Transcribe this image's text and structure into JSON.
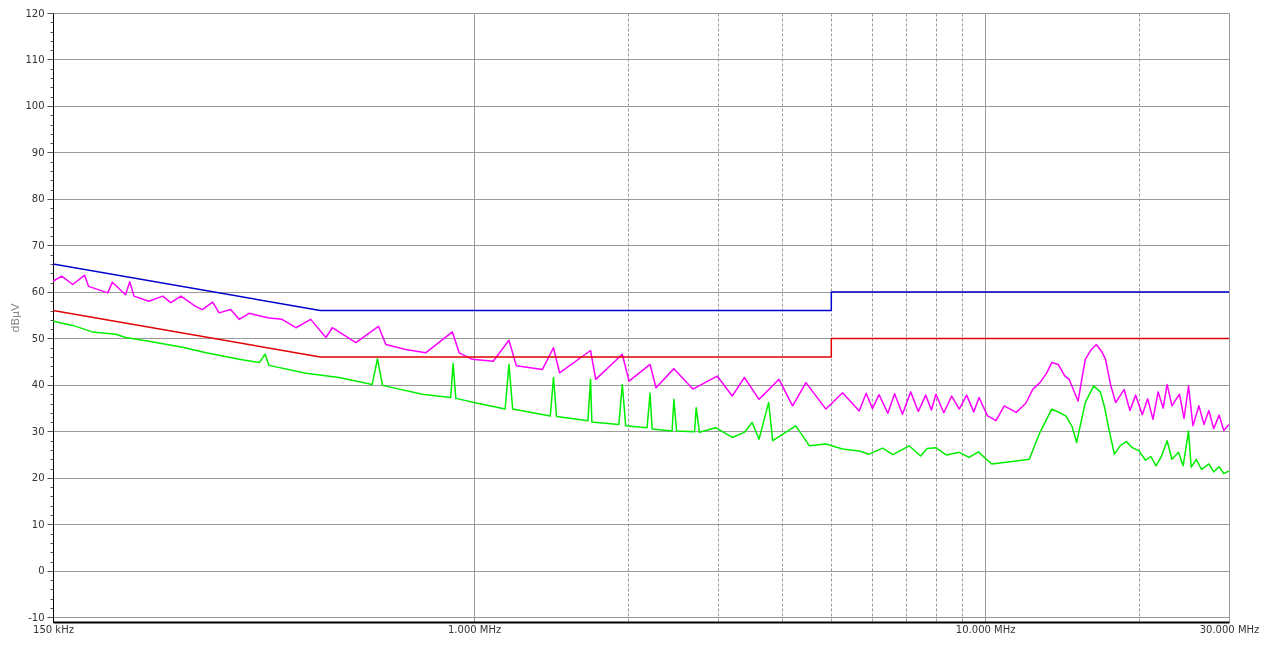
{
  "chart_data": {
    "type": "line",
    "ylabel": "dBµV",
    "log": "x",
    "grid": true,
    "line_style": "solid",
    "xlim": [
      150,
      30000
    ],
    "xticks": [
      {
        "value": 150,
        "label": "150 kHz"
      },
      {
        "value": 1000,
        "label": "1.000 MHz"
      },
      {
        "value": 2000,
        "label": null
      },
      {
        "value": 3000,
        "label": null
      },
      {
        "value": 4000,
        "label": null
      },
      {
        "value": 5000,
        "label": null
      },
      {
        "value": 6000,
        "label": null
      },
      {
        "value": 7000,
        "label": null
      },
      {
        "value": 8000,
        "label": null
      },
      {
        "value": 9000,
        "label": null
      },
      {
        "value": 10000,
        "label": "10.000 MHz"
      },
      {
        "value": 20000,
        "label": null
      },
      {
        "value": 30000,
        "label": "30.000 MHz"
      }
    ],
    "ylim": [
      -11,
      120
    ],
    "yticks": [
      -10,
      {
        "value": -8,
        "label": null
      },
      {
        "value": -6,
        "label": null
      },
      {
        "value": -4,
        "label": null
      },
      {
        "value": -2,
        "label": null
      },
      0,
      {
        "value": 2,
        "label": null
      },
      {
        "value": 4,
        "label": null
      },
      {
        "value": 6,
        "label": null
      },
      {
        "value": 8,
        "label": null
      },
      10,
      {
        "value": 12,
        "label": null
      },
      {
        "value": 14,
        "label": null
      },
      {
        "value": 16,
        "label": null
      },
      {
        "value": 18,
        "label": null
      },
      20,
      {
        "value": 22,
        "label": null
      },
      {
        "value": 24,
        "label": null
      },
      {
        "value": 26,
        "label": null
      },
      {
        "value": 28,
        "label": null
      },
      30,
      {
        "value": 32,
        "label": null
      },
      {
        "value": 34,
        "label": null
      },
      {
        "value": 36,
        "label": null
      },
      {
        "value": 38,
        "label": null
      },
      40,
      {
        "value": 42,
        "label": null
      },
      {
        "value": 44,
        "label": null
      },
      {
        "value": 46,
        "label": null
      },
      {
        "value": 48,
        "label": null
      },
      50,
      {
        "value": 52,
        "label": null
      },
      {
        "value": 54,
        "label": null
      },
      {
        "value": 56,
        "label": null
      },
      {
        "value": 58,
        "label": null
      },
      60,
      {
        "value": 62,
        "label": null
      },
      {
        "value": 64,
        "label": null
      },
      {
        "value": 66,
        "label": null
      },
      {
        "value": 68,
        "label": null
      },
      70,
      {
        "value": 72,
        "label": null
      },
      {
        "value": 74,
        "label": null
      },
      {
        "value": 76,
        "label": null
      },
      {
        "value": 78,
        "label": null
      },
      80,
      {
        "value": 82,
        "label": null
      },
      {
        "value": 84,
        "label": null
      },
      {
        "value": 86,
        "label": null
      },
      {
        "value": 88,
        "label": null
      },
      90,
      {
        "value": 92,
        "label": null
      },
      {
        "value": 94,
        "label": null
      },
      {
        "value": 96,
        "label": null
      },
      {
        "value": 98,
        "label": null
      },
      100,
      {
        "value": 102,
        "label": null
      },
      {
        "value": 104,
        "label": null
      },
      {
        "value": 106,
        "label": null
      },
      {
        "value": 108,
        "label": null
      },
      110,
      {
        "value": 112,
        "label": null
      },
      {
        "value": 114,
        "label": null
      },
      {
        "value": 116,
        "label": null
      },
      {
        "value": 118,
        "label": null
      },
      120
    ],
    "series": [
      {
        "color": "#ff00ff",
        "x": [
          150,
          156,
          164,
          173,
          176,
          192,
          196,
          208,
          212,
          216,
          231,
          246,
          255,
          267,
          285,
          294,
          308,
          317,
          334,
          347,
          363,
          397,
          421,
          448,
          479,
          513,
          528,
          587,
          650,
          672,
          735,
          804,
          907,
          935,
          992,
          1090,
          1170,
          1210,
          1360,
          1430,
          1470,
          1690,
          1730,
          1950,
          2010,
          2210,
          2270,
          2460,
          2680,
          2990,
          3200,
          3380,
          3610,
          3950,
          4200,
          4460,
          4880,
          5260,
          5670,
          5850,
          6020,
          6200,
          6450,
          6650,
          6890,
          7150,
          7400,
          7650,
          7850,
          8010,
          8300,
          8600,
          8900,
          9200,
          9500,
          9730,
          10100,
          10500,
          10900,
          11500,
          12000,
          12400,
          12800,
          13200,
          13500,
          13900,
          14300,
          14600,
          15200,
          15500,
          15700,
          16100,
          16500,
          16900,
          17200,
          17600,
          18000,
          18700,
          19200,
          19700,
          20300,
          20800,
          21300,
          21800,
          22300,
          22700,
          23200,
          24000,
          24500,
          25000,
          25500,
          26200,
          26800,
          27400,
          28000,
          28700,
          29300,
          30000
        ],
        "values": [
          62.3,
          63.4,
          61.6,
          63.6,
          61.2,
          59.8,
          62.1,
          59.4,
          62.2,
          59.1,
          58.0,
          59.1,
          57.7,
          59.1,
          56.9,
          56.2,
          57.8,
          55.5,
          56.2,
          54.1,
          55.4,
          54.4,
          54.1,
          52.3,
          54.1,
          50.2,
          52.3,
          49.1,
          52.6,
          48.7,
          47.6,
          46.9,
          51.4,
          46.9,
          45.5,
          45.1,
          49.6,
          44.1,
          43.3,
          48.0,
          42.6,
          47.4,
          41.2,
          46.6,
          40.8,
          44.4,
          39.4,
          43.5,
          39.1,
          41.9,
          37.6,
          41.6,
          36.9,
          41.2,
          35.5,
          40.5,
          34.8,
          38.3,
          34.4,
          38.2,
          34.9,
          37.9,
          33.9,
          38.1,
          33.7,
          38.5,
          34.3,
          37.8,
          34.6,
          38.0,
          34.0,
          37.6,
          34.8,
          37.8,
          34.2,
          37.3,
          33.4,
          32.3,
          35.5,
          34.1,
          36.0,
          39.1,
          40.5,
          42.6,
          44.8,
          44.4,
          42.0,
          41.2,
          36.5,
          42.0,
          45.5,
          47.5,
          48.7,
          47.2,
          45.5,
          40.0,
          36.2,
          39.0,
          34.5,
          37.8,
          33.6,
          37.0,
          32.6,
          38.5,
          35.0,
          40.1,
          35.5,
          38.0,
          32.8,
          39.8,
          31.2,
          35.5,
          31.5,
          34.5,
          30.6,
          33.5,
          30.2,
          31.5
        ]
      },
      {
        "color": "#00ee00",
        "x": [
          150,
          164,
          179,
          199,
          208,
          231,
          269,
          299,
          347,
          380,
          390,
          397,
          469,
          544,
          632,
          647,
          662,
          792,
          900,
          910,
          921,
          1010,
          1150,
          1170,
          1190,
          1410,
          1430,
          1450,
          1670,
          1690,
          1700,
          1920,
          1950,
          1980,
          2180,
          2210,
          2230,
          2440,
          2460,
          2490,
          2700,
          2720,
          2760,
          2970,
          3200,
          3380,
          3500,
          3610,
          3770,
          3840,
          4260,
          4530,
          4880,
          5260,
          5670,
          5930,
          6300,
          6600,
          7100,
          7480,
          7700,
          8010,
          8400,
          8900,
          9300,
          9700,
          10300,
          11300,
          12200,
          12800,
          13500,
          14000,
          14400,
          14800,
          15100,
          15400,
          15700,
          16300,
          16800,
          17100,
          17500,
          17900,
          18400,
          18900,
          19400,
          20000,
          20600,
          21100,
          21600,
          22100,
          22700,
          23200,
          23900,
          24400,
          25000,
          25300,
          25900,
          26500,
          27400,
          28000,
          28700,
          29300,
          30000
        ],
        "values": [
          53.7,
          52.8,
          51.4,
          50.9,
          50.2,
          49.4,
          48.1,
          46.9,
          45.5,
          44.8,
          46.6,
          44.2,
          42.5,
          41.6,
          40.1,
          45.6,
          39.9,
          38.0,
          37.3,
          44.6,
          37.1,
          36.1,
          34.8,
          44.4,
          34.8,
          33.3,
          41.6,
          33.2,
          32.3,
          41.2,
          32.0,
          31.5,
          40.1,
          31.2,
          30.8,
          38.2,
          30.5,
          30.1,
          36.9,
          30.1,
          29.9,
          35.1,
          29.8,
          30.8,
          28.7,
          29.8,
          31.9,
          28.3,
          36.2,
          28.0,
          31.2,
          26.9,
          27.3,
          26.2,
          25.8,
          25.1,
          26.4,
          25.0,
          26.9,
          24.7,
          26.3,
          26.5,
          24.9,
          25.5,
          24.4,
          25.6,
          23.0,
          23.5,
          24.0,
          29.8,
          34.8,
          34.0,
          33.3,
          31.0,
          27.6,
          32.0,
          36.2,
          39.8,
          38.5,
          35.5,
          30.0,
          25.1,
          27.0,
          27.8,
          26.5,
          25.8,
          23.8,
          24.6,
          22.6,
          24.5,
          28.0,
          24.0,
          25.5,
          22.6,
          30.1,
          22.3,
          24.0,
          21.8,
          23.0,
          21.3,
          22.4,
          20.9,
          21.5
        ]
      },
      {
        "color": "#0000cc",
        "x": [
          150,
          500,
          5000,
          5000,
          30000
        ],
        "values": [
          66,
          56,
          56,
          60,
          60
        ]
      },
      {
        "color": "#e00000",
        "x": [
          150,
          500,
          5000,
          5000,
          30000
        ],
        "values": [
          56,
          46,
          46,
          50,
          50
        ]
      }
    ]
  }
}
